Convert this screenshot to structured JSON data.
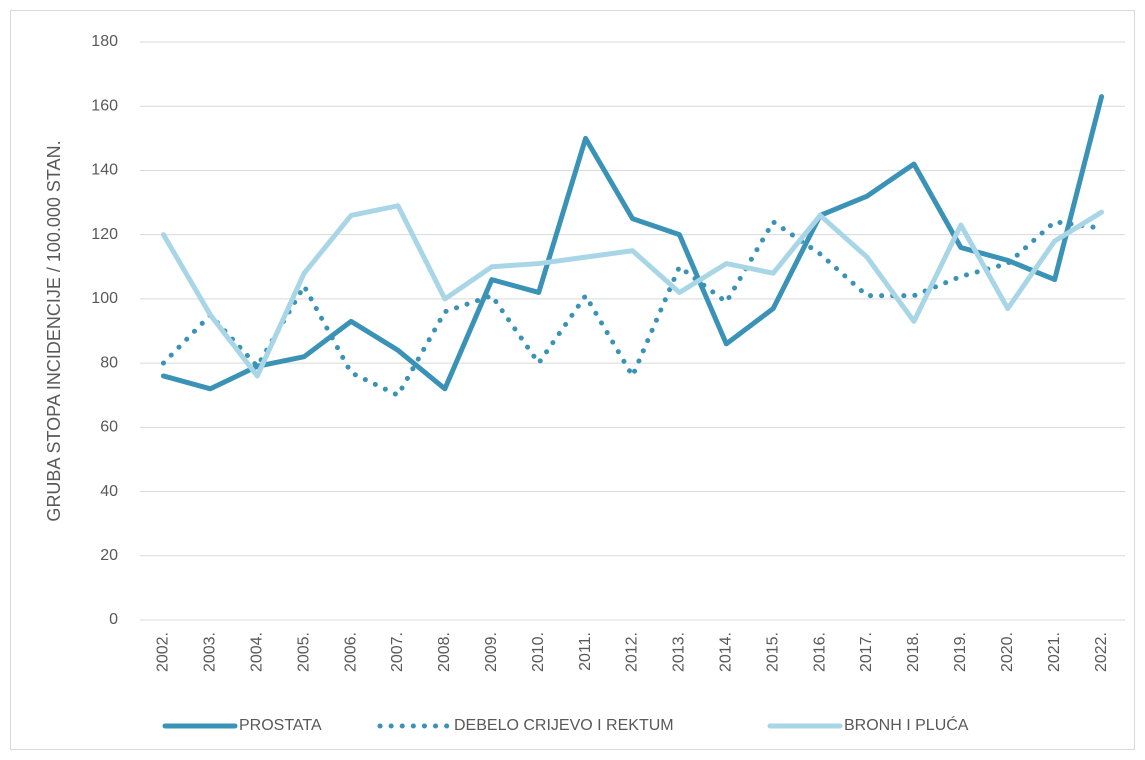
{
  "chart_data": {
    "type": "line",
    "y_label": "GRUBA STOPA INCIDENCIJE / 100.000 STAN.",
    "categories": [
      "2002.",
      "2003.",
      "2004.",
      "2005.",
      "2006.",
      "2007.",
      "2008.",
      "2009.",
      "2010.",
      "2011.",
      "2012.",
      "2013.",
      "2014.",
      "2015.",
      "2016.",
      "2017.",
      "2018.",
      "2019.",
      "2020.",
      "2021.",
      "2022."
    ],
    "series": [
      {
        "name": "PROSTATA",
        "color": "#3a93b6",
        "line_style": "solid",
        "values": [
          76,
          72,
          79,
          82,
          93,
          84,
          72,
          106,
          102,
          150,
          125,
          120,
          86,
          97,
          126,
          132,
          142,
          116,
          112,
          106,
          163
        ]
      },
      {
        "name": "DEBELO CRIJEVO I REKTUM",
        "color": "#3a93b6",
        "line_style": "dotted",
        "values": [
          80,
          95,
          79,
          104,
          77,
          70,
          96,
          101,
          80,
          101,
          76,
          110,
          99,
          124,
          114,
          101,
          101,
          107,
          111,
          124,
          122
        ]
      },
      {
        "name": "BRONH I PLUĆA",
        "color": "#a9d6e6",
        "line_style": "solid",
        "values": [
          120,
          95,
          76,
          108,
          126,
          129,
          100,
          110,
          111,
          113,
          115,
          102,
          111,
          108,
          126,
          113,
          93,
          123,
          97,
          118,
          127
        ]
      }
    ],
    "ylim": [
      0,
      180
    ],
    "yticks": [
      0,
      20,
      40,
      60,
      80,
      100,
      120,
      140,
      160,
      180
    ],
    "grid": true,
    "legend": "bottom"
  }
}
